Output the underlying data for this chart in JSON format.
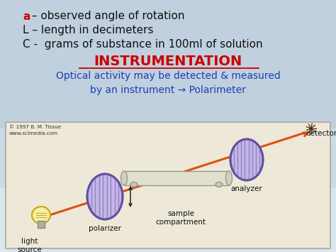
{
  "line1_prefix": "a",
  "line1_prefix_color": "#cc0000",
  "line1_text": " – observed angle of rotation",
  "line2": "L – length in decimeters",
  "line3": "C -  grams of substance in 100ml of solution",
  "title": "INSTRUMENTATION",
  "title_color": "#cc0000",
  "subtitle": "Optical activity may be detected & measured\nby an instrument → Polarimeter",
  "subtitle_color": "#1a3eb5",
  "copyright": "© 1997 B. M. Tissue\nwww.scimedia.com",
  "label_lightsource": "light\nsource",
  "label_polarizer": "polarizer",
  "label_sample": "sample\ncompartment",
  "label_analyzer": "analyzer",
  "label_detector": "detector",
  "beam_color": "#e05010",
  "disk_face_color": "#c8b4e8",
  "disk_stripe_color": "#8888bb",
  "disk_edge_color": "#6050a0",
  "font_size_main": 11,
  "font_size_title": 14,
  "font_size_subtitle": 10,
  "font_size_diagram": 7.5
}
